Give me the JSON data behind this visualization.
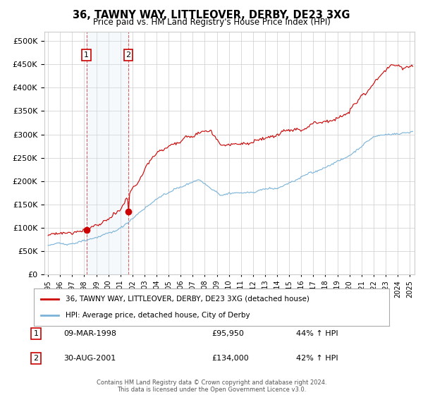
{
  "title": "36, TAWNY WAY, LITTLEOVER, DERBY, DE23 3XG",
  "subtitle": "Price paid vs. HM Land Registry's House Price Index (HPI)",
  "ytick_values": [
    0,
    50000,
    100000,
    150000,
    200000,
    250000,
    300000,
    350000,
    400000,
    450000,
    500000
  ],
  "ylim": [
    0,
    520000
  ],
  "xlim_start": 1994.7,
  "xlim_end": 2025.4,
  "purchase1_date": 1998.19,
  "purchase1_price": 95950,
  "purchase1_label": "1",
  "purchase1_date_str": "09-MAR-1998",
  "purchase1_price_str": "£95,950",
  "purchase1_hpi": "44% ↑ HPI",
  "purchase2_date": 2001.66,
  "purchase2_price": 134000,
  "purchase2_label": "2",
  "purchase2_date_str": "30-AUG-2001",
  "purchase2_price_str": "£134,000",
  "purchase2_hpi": "42% ↑ HPI",
  "hpi_color": "#7ab3d9",
  "property_color": "#cc0000",
  "shade_color": "#daeaf7",
  "grid_color": "#cccccc",
  "background_color": "#ffffff",
  "legend_label_property": "36, TAWNY WAY, LITTLEOVER, DERBY, DE23 3XG (detached house)",
  "legend_label_hpi": "HPI: Average price, detached house, City of Derby",
  "footer": "Contains HM Land Registry data © Crown copyright and database right 2024.\nThis data is licensed under the Open Government Licence v3.0."
}
